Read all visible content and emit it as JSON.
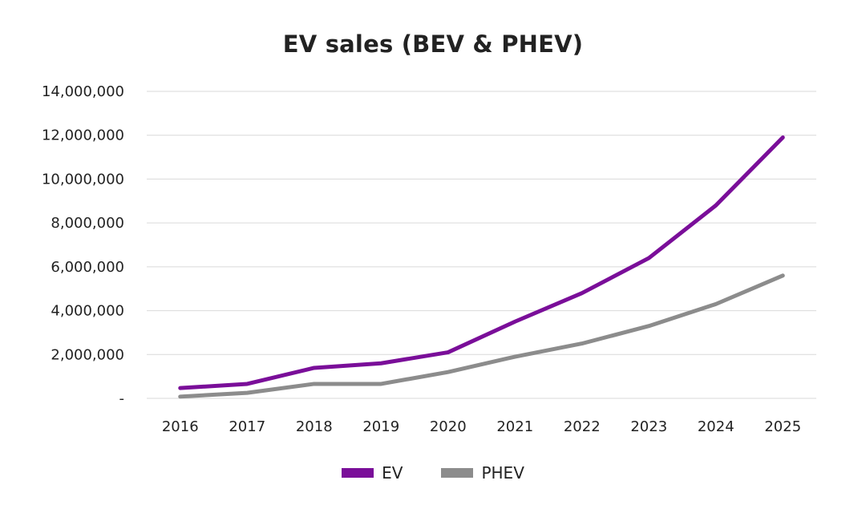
{
  "chart_data": {
    "type": "line",
    "title": "EV sales  (BEV & PHEV)",
    "xlabel": "",
    "ylabel": "",
    "categories": [
      "2016",
      "2017",
      "2018",
      "2019",
      "2020",
      "2021",
      "2022",
      "2023",
      "2024",
      "2025"
    ],
    "series": [
      {
        "name": "EV",
        "color": "#7a0e99",
        "values": [
          470000,
          660000,
          1390000,
          1600000,
          2100000,
          3500000,
          4800000,
          6400000,
          8800000,
          11900000
        ]
      },
      {
        "name": "PHEV",
        "color": "#8c8c8c",
        "values": [
          80000,
          250000,
          660000,
          660000,
          1200000,
          1900000,
          2500000,
          3300000,
          4300000,
          5600000
        ]
      }
    ],
    "ylim": [
      0,
      14000000
    ],
    "yticks": [
      {
        "value": 0,
        "label": "-"
      },
      {
        "value": 2000000,
        "label": "2,000,000"
      },
      {
        "value": 4000000,
        "label": "4,000,000"
      },
      {
        "value": 6000000,
        "label": "6,000,000"
      },
      {
        "value": 8000000,
        "label": "8,000,000"
      },
      {
        "value": 10000000,
        "label": "10,000,000"
      },
      {
        "value": 12000000,
        "label": "12,000,000"
      },
      {
        "value": 14000000,
        "label": "14,000,000"
      }
    ],
    "grid": true,
    "legend_position": "bottom"
  }
}
